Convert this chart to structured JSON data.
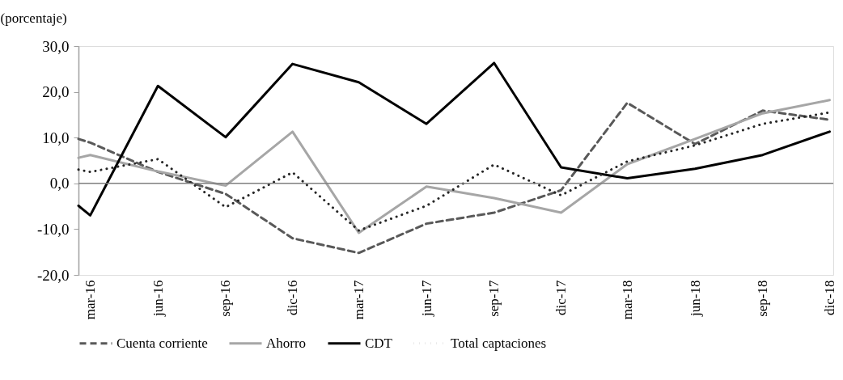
{
  "chart_data": {
    "type": "line",
    "ylabel": "(porcentaje)",
    "x": [
      "2016-02-14",
      "2016-03-01",
      "2016-06-01",
      "2016-09-01",
      "2016-12-01",
      "2017-03-01",
      "2017-06-01",
      "2017-09-01",
      "2017-12-01",
      "2018-03-01",
      "2018-06-01",
      "2018-09-01",
      "2018-12-01"
    ],
    "xlim": [
      "2016-02-14",
      "2018-12-06"
    ],
    "xticks": [
      {
        "value": "2016-03-01",
        "label": "mar-16"
      },
      {
        "value": "2016-06-01",
        "label": "jun-16"
      },
      {
        "value": "2016-09-01",
        "label": "sep-16"
      },
      {
        "value": "2016-12-01",
        "label": "dic-16"
      },
      {
        "value": "2017-03-01",
        "label": "mar-17"
      },
      {
        "value": "2017-06-01",
        "label": "jun-17"
      },
      {
        "value": "2017-09-01",
        "label": "sep-17"
      },
      {
        "value": "2017-12-01",
        "label": "dic-17"
      },
      {
        "value": "2018-03-01",
        "label": "mar-18"
      },
      {
        "value": "2018-06-01",
        "label": "jun-18"
      },
      {
        "value": "2018-09-01",
        "label": "sep-18"
      },
      {
        "value": "2018-12-01",
        "label": "dic-18"
      }
    ],
    "ylim": [
      -20,
      30
    ],
    "yticks": [
      {
        "value": -20,
        "label": "-20,0"
      },
      {
        "value": -10,
        "label": "-10,0"
      },
      {
        "value": 0,
        "label": "0,0"
      },
      {
        "value": 10,
        "label": "10,0"
      },
      {
        "value": 20,
        "label": "20,0"
      },
      {
        "value": 30,
        "label": "30,0"
      }
    ],
    "series": [
      {
        "name": "Cuenta corriente",
        "color": "#595959",
        "line_style": "dashed",
        "values": [
          9.7,
          8.9,
          2.5,
          -2.3,
          -12.0,
          -15.2,
          -8.8,
          -6.4,
          -1.5,
          17.6,
          8.6,
          15.9,
          13.9
        ]
      },
      {
        "name": "Ahorro",
        "color": "#a6a6a6",
        "line_style": "solid",
        "values": [
          5.6,
          6.2,
          2.6,
          -0.5,
          11.3,
          -10.8,
          -0.7,
          -3.2,
          -6.4,
          4.2,
          9.7,
          15.3,
          18.2
        ]
      },
      {
        "name": "CDT",
        "color": "#000000",
        "line_style": "solid",
        "values": [
          -4.9,
          -7.0,
          21.3,
          10.1,
          26.1,
          22.1,
          13.0,
          26.3,
          3.5,
          1.1,
          3.2,
          6.2,
          11.3
        ]
      },
      {
        "name": "Total captaciones",
        "color": "#262626",
        "line_style": "dotted",
        "values": [
          3.0,
          2.5,
          5.3,
          -5.2,
          2.4,
          -10.3,
          -4.9,
          4.1,
          -2.6,
          4.8,
          8.3,
          13.0,
          15.5
        ]
      }
    ],
    "ref_lines": [
      {
        "axis": "y",
        "value": 0,
        "color": "#808080"
      }
    ],
    "legend": "bottom",
    "marker": "none",
    "grid": false
  }
}
